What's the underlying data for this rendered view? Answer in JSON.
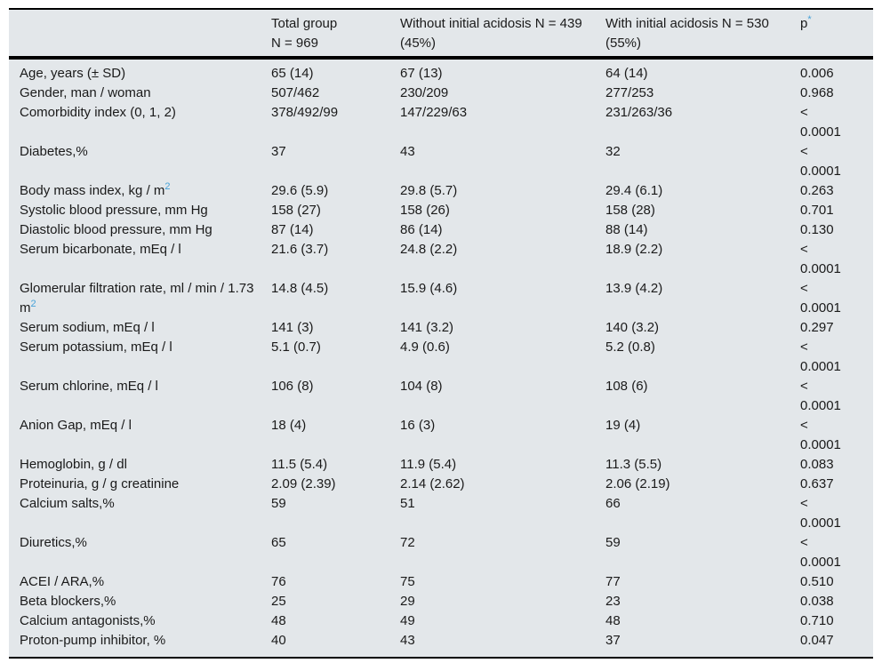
{
  "colors": {
    "accent": "#45a1d8",
    "table_background": "#e3e7ea",
    "rule": "#000000",
    "text": "#1a1a1a"
  },
  "header": {
    "label_column": "",
    "total": {
      "line1": "Total group",
      "line2": "N = 969"
    },
    "without": {
      "line1": "Without initial acidosis N = 439",
      "line2": "(45%)"
    },
    "with": {
      "line1": "With initial acidosis N = 530",
      "line2": "(55%)"
    },
    "p": {
      "label": "p",
      "sup": "*"
    }
  },
  "rows": [
    {
      "label": "Age, years (± SD)",
      "total": "65 (14)",
      "without": "67 (13)",
      "with": "64 (14)",
      "p": "0.006"
    },
    {
      "label": "Gender, man / woman",
      "total": "507/462",
      "without": "230/209",
      "with": "277/253",
      "p": "0.968"
    },
    {
      "label": "Comorbidity index (0, 1, 2)",
      "total": "378/492/99",
      "without": "147/229/63",
      "with": "231/263/36",
      "p": "< 0.0001"
    },
    {
      "label": "Diabetes,%",
      "total": "37",
      "without": "43",
      "with": "32",
      "p": "< 0.0001"
    },
    {
      "label": "Body mass index, kg / m",
      "label_sup": "2",
      "total": "29.6 (5.9)",
      "without": "29.8 (5.7)",
      "with": "29.4 (6.1)",
      "p": "0.263"
    },
    {
      "label": "Systolic blood pressure, mm Hg",
      "total": "158 (27)",
      "without": "158 (26)",
      "with": "158 (28)",
      "p": "0.701"
    },
    {
      "label": "Diastolic blood pressure, mm Hg",
      "total": "87 (14)",
      "without": "86 (14)",
      "with": "88 (14)",
      "p": "0.130"
    },
    {
      "label": "Serum bicarbonate, mEq / l",
      "total": "21.6 (3.7)",
      "without": "24.8 (2.2)",
      "with": "18.9 (2.2)",
      "p": "< 0.0001"
    },
    {
      "label": "Glomerular filtration rate, ml / min / 1.73 m",
      "label_sup": "2",
      "total": "14.8 (4.5)",
      "without": "15.9 (4.6)",
      "with": "13.9 (4.2)",
      "p": "< 0.0001"
    },
    {
      "label": "Serum sodium, mEq / l",
      "total": "141 (3)",
      "without": "141 (3.2)",
      "with": "140 (3.2)",
      "p": "0.297"
    },
    {
      "label": "Serum potassium, mEq / l",
      "total": "5.1 (0.7)",
      "without": "4.9 (0.6)",
      "with": "5.2 (0.8)",
      "p": "< 0.0001"
    },
    {
      "label": "Serum chlorine, mEq / l",
      "total": "106 (8)",
      "without": "104 (8)",
      "with": "108 (6)",
      "p": "< 0.0001"
    },
    {
      "label": "Anion Gap, mEq / l",
      "total": "18 (4)",
      "without": "16 (3)",
      "with": "19 (4)",
      "p": "< 0.0001"
    },
    {
      "label": "Hemoglobin, g / dl",
      "total": "11.5 (5.4)",
      "without": "11.9 (5.4)",
      "with": "11.3 (5.5)",
      "p": "0.083"
    },
    {
      "label": "Proteinuria, g / g creatinine",
      "total": "2.09 (2.39)",
      "without": "2.14 (2.62)",
      "with": "2.06 (2.19)",
      "p": "0.637"
    },
    {
      "label": "Calcium salts,%",
      "total": "59",
      "without": "51",
      "with": "66",
      "p": "< 0.0001"
    },
    {
      "label": "Diuretics,%",
      "total": "65",
      "without": "72",
      "with": "59",
      "p": "< 0.0001"
    },
    {
      "label": "ACEI / ARA,%",
      "total": "76",
      "without": "75",
      "with": "77",
      "p": "0.510"
    },
    {
      "label": "Beta blockers,%",
      "total": "25",
      "without": "29",
      "with": "23",
      "p": "0.038"
    },
    {
      "label": "Calcium antagonists,%",
      "total": "48",
      "without": "49",
      "with": "48",
      "p": "0.710"
    },
    {
      "label": "Proton-pump inhibitor, %",
      "total": "40",
      "without": "43",
      "with": "37",
      "p": "0.047"
    }
  ]
}
